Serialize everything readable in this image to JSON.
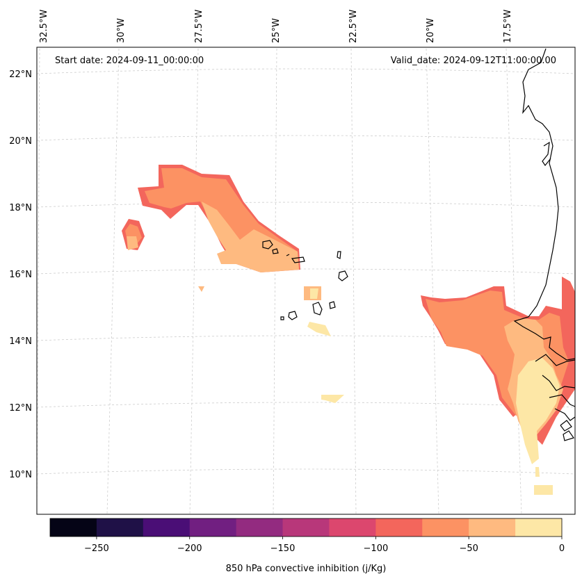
{
  "map": {
    "start_date": "Start date: 2024-09-11_00:00:00",
    "valid_date": "Valid_date: 2024-09-12T11:00:00.00",
    "lon_labels": [
      "32.5°W",
      "30°W",
      "27.5°W",
      "25°W",
      "22.5°W",
      "20°W",
      "17.5°W"
    ],
    "lat_labels": [
      "22°N",
      "20°N",
      "18°N",
      "16°N",
      "14°N",
      "12°N",
      "10°N"
    ]
  },
  "colorbar": {
    "label": "850 hPa convective inhibition (j/Kg)",
    "tick_labels": [
      "−250",
      "−200",
      "−150",
      "−100",
      "−50",
      "0"
    ],
    "levels": [
      -275,
      -250,
      -225,
      -200,
      -175,
      -150,
      -125,
      -100,
      -75,
      -50,
      -25,
      0
    ],
    "colors": [
      "#050416",
      "#1f1147",
      "#4a0e76",
      "#711f81",
      "#932b80",
      "#b8377a",
      "#dc476e",
      "#f3665c",
      "#fc9263",
      "#feba80",
      "#fde7a6"
    ]
  }
}
